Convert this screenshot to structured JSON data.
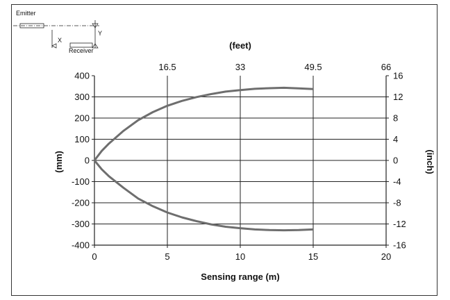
{
  "diagram": {
    "emitter_label": "Emitter",
    "receiver_label": "Receiver",
    "x_label": "X",
    "y_label": "Y"
  },
  "chart_data": {
    "type": "line",
    "title": "",
    "xlabel": "Sensing range (m)",
    "ylabel": "(mm)",
    "x2label": "(feet)",
    "y2label": "(inch)",
    "xlim": [
      0,
      20
    ],
    "ylim": [
      -400,
      400
    ],
    "x_ticks": [
      0,
      5,
      10,
      15,
      20
    ],
    "y_ticks": [
      400,
      300,
      200,
      100,
      0,
      -100,
      -200,
      -300,
      -400
    ],
    "x2_ticks": [
      "16.5",
      "33",
      "49.5",
      "66"
    ],
    "x2_tick_m": [
      5,
      10,
      15,
      20
    ],
    "y2_ticks": [
      "16",
      "12",
      "8",
      "4",
      "0",
      "-4",
      "-8",
      "-12",
      "-16"
    ],
    "grid": "vertical at major x ticks, horizontal at major y ticks",
    "line_color": "#6e6e6e",
    "series": [
      {
        "x": [
          0,
          0.5,
          1,
          2,
          3,
          4,
          5,
          6,
          7,
          8,
          9,
          10,
          11,
          12,
          13,
          14,
          15
        ],
        "values": [
          0,
          45,
          80,
          140,
          190,
          228,
          258,
          281,
          299,
          313,
          325,
          332,
          338,
          341,
          343,
          340,
          337
        ]
      },
      {
        "x": [
          0,
          0.5,
          1,
          2,
          3,
          4,
          5,
          6,
          7,
          8,
          9,
          10,
          11,
          12,
          13,
          14,
          15
        ],
        "values": [
          0,
          -42,
          -75,
          -130,
          -180,
          -216,
          -246,
          -269,
          -287,
          -302,
          -313,
          -320,
          -326,
          -329,
          -330,
          -329,
          -326
        ]
      }
    ]
  }
}
